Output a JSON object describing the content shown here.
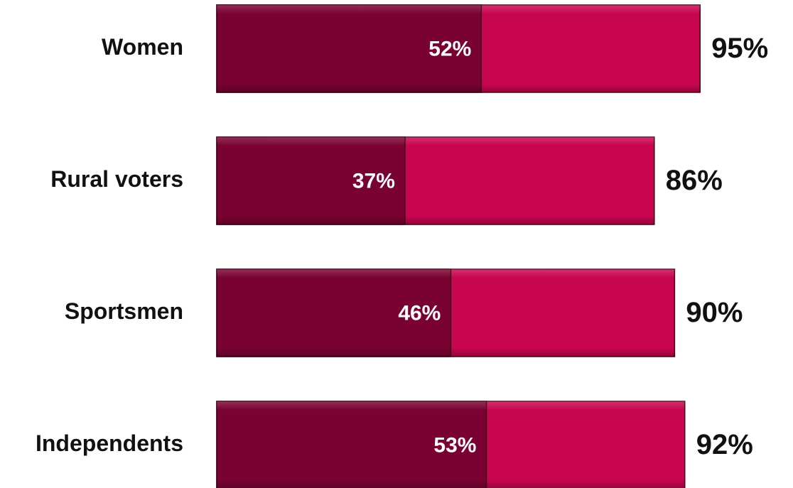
{
  "chart_data": {
    "type": "bar",
    "orientation": "horizontal",
    "overlap": true,
    "categories": [
      "Women",
      "Rural voters",
      "Sportsmen",
      "Independents"
    ],
    "xlim": [
      0,
      100
    ],
    "series": [
      {
        "color": "#c8054f",
        "values": [
          95,
          86,
          90,
          92
        ],
        "value_labels": [
          "95%",
          "86%",
          "90%",
          "92%"
        ]
      },
      {
        "color": "#7a0232",
        "values": [
          52,
          37,
          46,
          53
        ],
        "value_labels": [
          "52%",
          "37%",
          "46%",
          "53%"
        ]
      }
    ]
  }
}
